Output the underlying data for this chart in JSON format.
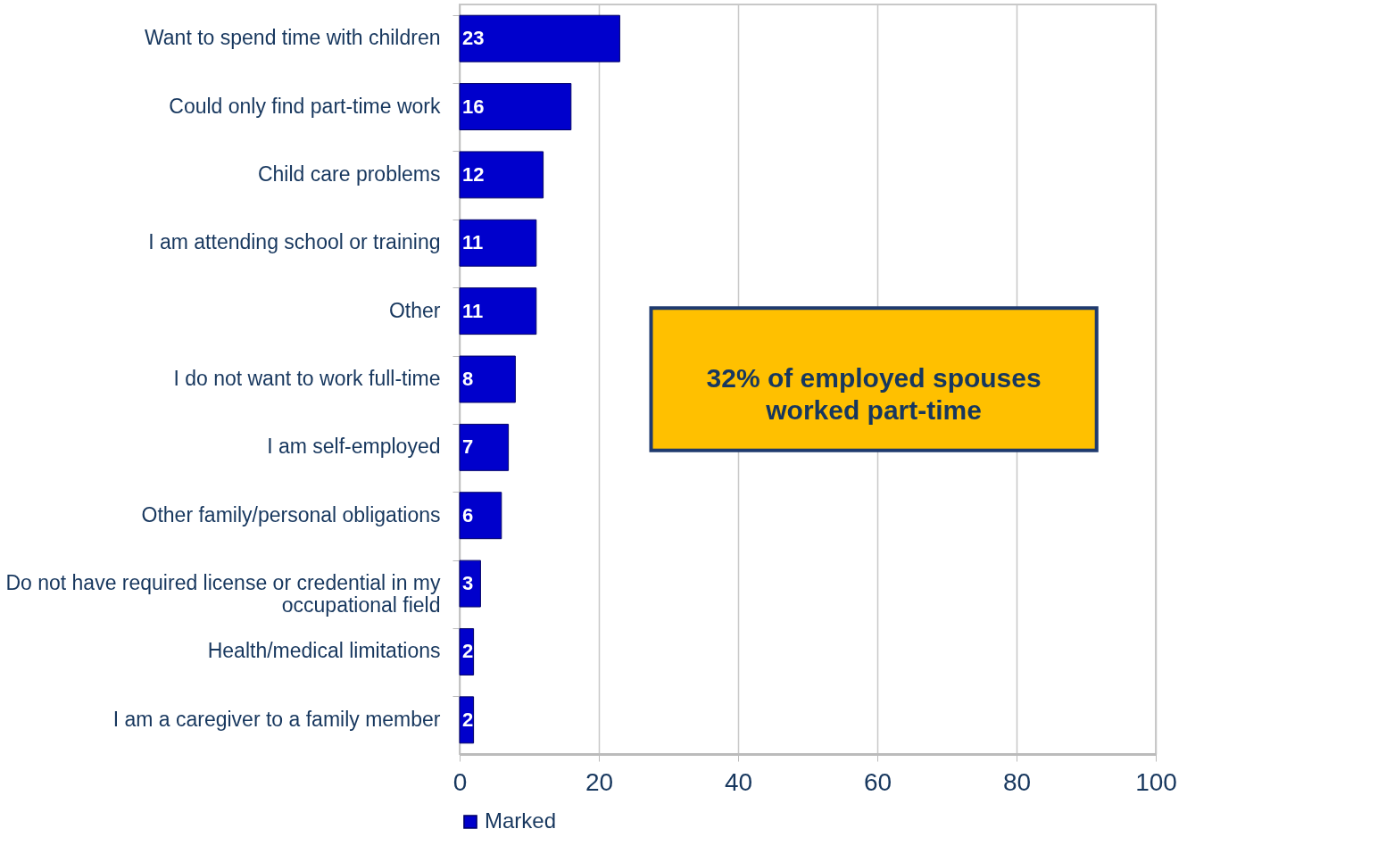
{
  "chart_data": {
    "type": "bar",
    "orientation": "horizontal",
    "categories": [
      "Want to spend time with children",
      "Could only find part-time work",
      "Child care problems",
      "I am attending school or training",
      "Other",
      "I do not want to work full-time",
      "I am self-employed",
      "Other family/personal obligations",
      "Do not have required license or credential in my occupational field",
      "Health/medical limitations",
      "I am a caregiver to a family member"
    ],
    "series": [
      {
        "name": "Marked",
        "color": "#0000cc",
        "values": [
          23,
          16,
          12,
          11,
          11,
          8,
          7,
          6,
          3,
          2,
          2
        ]
      }
    ],
    "xlim": [
      0,
      100
    ],
    "xticks": [
      0,
      20,
      40,
      60,
      80,
      100
    ],
    "grid": "x",
    "legend": "bottom",
    "data_labels": true,
    "annotations": [
      "32% of employed spouses worked part-time"
    ]
  }
}
